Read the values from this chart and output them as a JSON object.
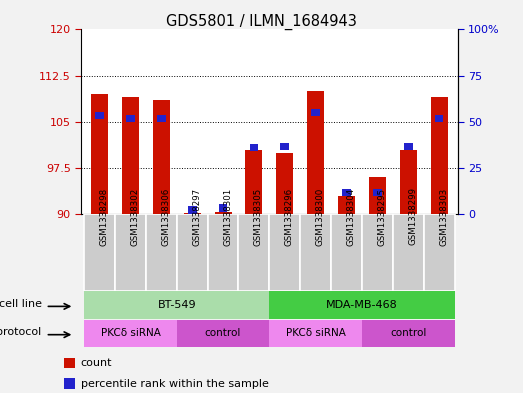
{
  "title": "GDS5801 / ILMN_1684943",
  "samples": [
    "GSM1338298",
    "GSM1338302",
    "GSM1338306",
    "GSM1338297",
    "GSM1338301",
    "GSM1338305",
    "GSM1338296",
    "GSM1338300",
    "GSM1338304",
    "GSM1338295",
    "GSM1338299",
    "GSM1338303"
  ],
  "red_values": [
    109.5,
    109.0,
    108.5,
    90.2,
    90.3,
    100.5,
    100.0,
    110.0,
    93.0,
    96.0,
    100.5,
    109.0
  ],
  "blue_values": [
    106.0,
    105.5,
    105.5,
    90.7,
    91.0,
    100.8,
    101.0,
    106.5,
    93.5,
    93.5,
    101.0,
    105.5
  ],
  "ymin": 90,
  "ymax": 120,
  "yticks_left": [
    90,
    97.5,
    105,
    112.5,
    120
  ],
  "yticks_right_vals": [
    0,
    25,
    50,
    75,
    100
  ],
  "yticks_right_labels": [
    "0",
    "25",
    "50",
    "75",
    "100%"
  ],
  "bar_red": "#cc1100",
  "bar_blue": "#2222cc",
  "bar_width": 0.55,
  "blue_bar_width": 0.28,
  "blue_bar_height": 1.2,
  "cell_line_groups": [
    {
      "label": "BT-549",
      "start": 0,
      "end": 5,
      "color": "#aaddaa"
    },
    {
      "label": "MDA-MB-468",
      "start": 6,
      "end": 11,
      "color": "#44cc44"
    }
  ],
  "protocol_groups": [
    {
      "label": "PKCδ siRNA",
      "start": 0,
      "end": 2,
      "color": "#ee88ee"
    },
    {
      "label": "control",
      "start": 3,
      "end": 5,
      "color": "#cc55cc"
    },
    {
      "label": "PKCδ siRNA",
      "start": 6,
      "end": 8,
      "color": "#ee88ee"
    },
    {
      "label": "control",
      "start": 9,
      "end": 11,
      "color": "#cc55cc"
    }
  ],
  "sample_box_color": "#cccccc",
  "fig_bg": "#f2f2f2",
  "plot_bg": "#ffffff",
  "legend_items": [
    {
      "label": "count",
      "color": "#cc1100"
    },
    {
      "label": "percentile rank within the sample",
      "color": "#2222cc"
    }
  ]
}
